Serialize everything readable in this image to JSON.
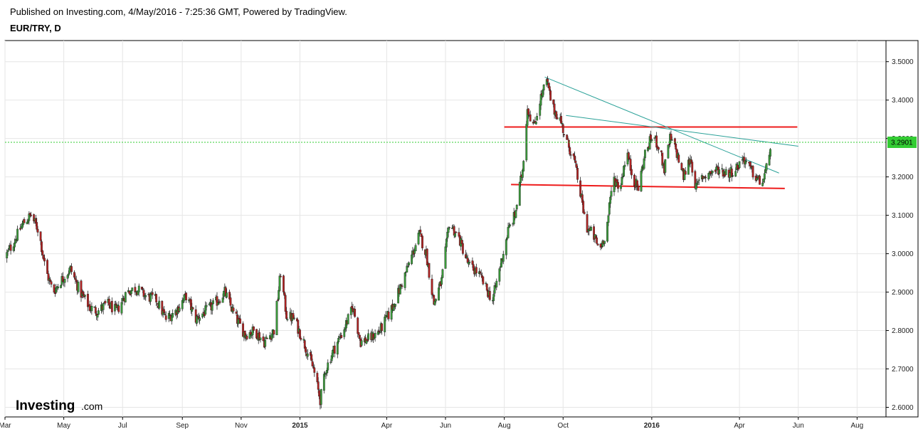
{
  "header": {
    "published": "Published on Investing.com, 4/May/2016 - 7:25:36 GMT, Powered by TradingView.",
    "symbol": "EUR/TRY, D"
  },
  "logo": {
    "brand": "Investing",
    "suffix": ".com"
  },
  "chart_data": {
    "type": "candlestick",
    "title": "EUR/TRY, D",
    "ylim": [
      2.575,
      3.555
    ],
    "y_ticks": [
      "3.5000",
      "3.4000",
      "3.3000",
      "3.2000",
      "3.1000",
      "3.0000",
      "2.9000",
      "2.8000",
      "2.7000",
      "2.6000"
    ],
    "x_ticks": [
      "Mar",
      "May",
      "Jul",
      "Sep",
      "Nov",
      "2015",
      "Apr",
      "Jun",
      "Aug",
      "Oct",
      "2016",
      "Apr",
      "Jun",
      "Aug"
    ],
    "x_range": [
      "2014-03-01",
      "2016-08-31"
    ],
    "grid": true,
    "last_price": "3.2901",
    "colors": {
      "up": "#3a9a3a",
      "down": "#b22222",
      "last_price": "#33cc33",
      "support_resistance": "#ee1c1c",
      "trendline": "#2aa198"
    },
    "close_series": [
      [
        "2014-03-01",
        2.99
      ],
      [
        "2014-03-10",
        3.03
      ],
      [
        "2014-03-20",
        3.08
      ],
      [
        "2014-03-28",
        3.1
      ],
      [
        "2014-04-05",
        3.06
      ],
      [
        "2014-04-12",
        2.96
      ],
      [
        "2014-04-20",
        2.9
      ],
      [
        "2014-04-28",
        2.93
      ],
      [
        "2014-05-08",
        2.96
      ],
      [
        "2014-05-18",
        2.9
      ],
      [
        "2014-05-28",
        2.86
      ],
      [
        "2014-06-05",
        2.85
      ],
      [
        "2014-06-15",
        2.87
      ],
      [
        "2014-06-25",
        2.85
      ],
      [
        "2014-07-05",
        2.9
      ],
      [
        "2014-07-15",
        2.91
      ],
      [
        "2014-07-25",
        2.89
      ],
      [
        "2014-08-05",
        2.88
      ],
      [
        "2014-08-15",
        2.83
      ],
      [
        "2014-08-25",
        2.85
      ],
      [
        "2014-09-05",
        2.89
      ],
      [
        "2014-09-15",
        2.83
      ],
      [
        "2014-09-25",
        2.85
      ],
      [
        "2014-10-05",
        2.87
      ],
      [
        "2014-10-15",
        2.9
      ],
      [
        "2014-10-25",
        2.84
      ],
      [
        "2014-11-05",
        2.79
      ],
      [
        "2014-11-15",
        2.8
      ],
      [
        "2014-11-25",
        2.77
      ],
      [
        "2014-12-05",
        2.8
      ],
      [
        "2014-12-12",
        2.95
      ],
      [
        "2014-12-18",
        2.84
      ],
      [
        "2014-12-26",
        2.83
      ],
      [
        "2015-01-05",
        2.77
      ],
      [
        "2015-01-15",
        2.7
      ],
      [
        "2015-01-22",
        2.62
      ],
      [
        "2015-01-28",
        2.7
      ],
      [
        "2015-02-05",
        2.75
      ],
      [
        "2015-02-15",
        2.8
      ],
      [
        "2015-02-25",
        2.86
      ],
      [
        "2015-03-05",
        2.77
      ],
      [
        "2015-03-15",
        2.78
      ],
      [
        "2015-03-25",
        2.8
      ],
      [
        "2015-04-05",
        2.85
      ],
      [
        "2015-04-15",
        2.91
      ],
      [
        "2015-04-25",
        2.98
      ],
      [
        "2015-05-05",
        3.05
      ],
      [
        "2015-05-12",
        3.0
      ],
      [
        "2015-05-20",
        2.87
      ],
      [
        "2015-05-28",
        2.93
      ],
      [
        "2015-06-05",
        3.08
      ],
      [
        "2015-06-15",
        3.04
      ],
      [
        "2015-06-25",
        2.97
      ],
      [
        "2015-07-05",
        2.95
      ],
      [
        "2015-07-15",
        2.9
      ],
      [
        "2015-07-20",
        2.88
      ],
      [
        "2015-07-28",
        2.97
      ],
      [
        "2015-08-05",
        3.06
      ],
      [
        "2015-08-12",
        3.1
      ],
      [
        "2015-08-20",
        3.22
      ],
      [
        "2015-08-25",
        3.38
      ],
      [
        "2015-09-01",
        3.33
      ],
      [
        "2015-09-07",
        3.4
      ],
      [
        "2015-09-14",
        3.45
      ],
      [
        "2015-09-20",
        3.38
      ],
      [
        "2015-09-28",
        3.35
      ],
      [
        "2015-10-05",
        3.29
      ],
      [
        "2015-10-12",
        3.25
      ],
      [
        "2015-10-18",
        3.17
      ],
      [
        "2015-10-25",
        3.07
      ],
      [
        "2015-11-01",
        3.05
      ],
      [
        "2015-11-08",
        3.01
      ],
      [
        "2015-11-15",
        3.06
      ],
      [
        "2015-11-22",
        3.2
      ],
      [
        "2015-11-29",
        3.17
      ],
      [
        "2015-12-06",
        3.27
      ],
      [
        "2015-12-12",
        3.2
      ],
      [
        "2015-12-18",
        3.17
      ],
      [
        "2015-12-25",
        3.26
      ],
      [
        "2016-01-02",
        3.31
      ],
      [
        "2016-01-08",
        3.28
      ],
      [
        "2016-01-14",
        3.22
      ],
      [
        "2016-01-20",
        3.3
      ],
      [
        "2016-01-26",
        3.27
      ],
      [
        "2016-02-03",
        3.2
      ],
      [
        "2016-02-10",
        3.25
      ],
      [
        "2016-02-16",
        3.17
      ],
      [
        "2016-02-22",
        3.2
      ],
      [
        "2016-03-01",
        3.21
      ],
      [
        "2016-03-10",
        3.22
      ],
      [
        "2016-03-20",
        3.21
      ],
      [
        "2016-03-28",
        3.22
      ],
      [
        "2016-04-05",
        3.25
      ],
      [
        "2016-04-12",
        3.22
      ],
      [
        "2016-04-18",
        3.2
      ],
      [
        "2016-04-24",
        3.18
      ],
      [
        "2016-04-29",
        3.22
      ],
      [
        "2016-05-02",
        3.27
      ],
      [
        "2016-05-04",
        3.29
      ]
    ],
    "annotations": [
      {
        "kind": "horizontal",
        "color": "red",
        "from": [
          "2015-08-01",
          3.33
        ],
        "to": [
          "2016-05-31",
          3.33
        ]
      },
      {
        "kind": "horizontal",
        "color": "red",
        "from": [
          "2015-08-08",
          3.18
        ],
        "to": [
          "2016-05-18",
          3.17
        ]
      },
      {
        "kind": "trendline",
        "color": "teal",
        "from": [
          "2015-09-12",
          3.46
        ],
        "to": [
          "2016-05-12",
          3.21
        ]
      },
      {
        "kind": "trendline",
        "color": "teal",
        "from": [
          "2015-10-04",
          3.36
        ],
        "to": [
          "2016-06-01",
          3.28
        ]
      }
    ]
  }
}
